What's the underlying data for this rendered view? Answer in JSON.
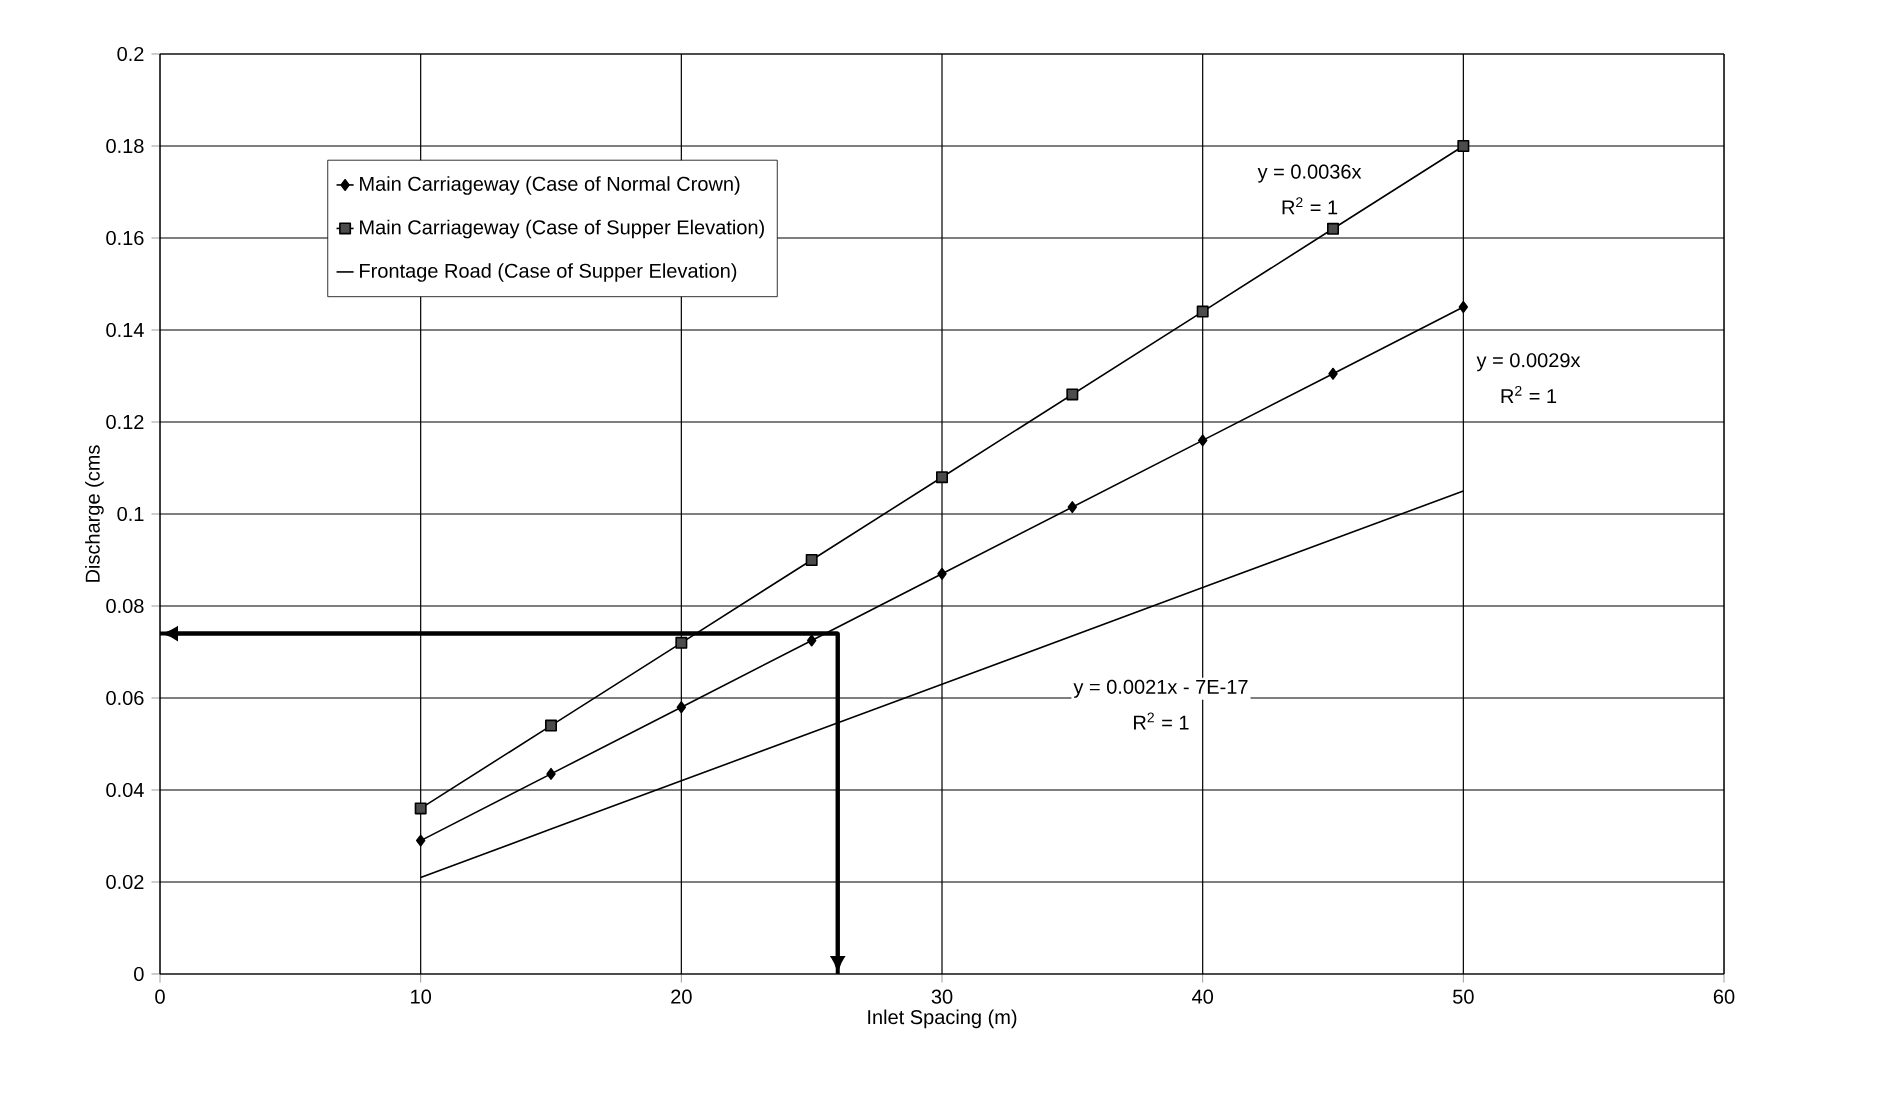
{
  "chart_data": {
    "type": "line",
    "xlabel": "Inlet Spacing (m)",
    "ylabel": "Discharge (cms",
    "xlim": [
      0,
      60
    ],
    "xticks": [
      0,
      10,
      20,
      30,
      40,
      50,
      60
    ],
    "ylim": [
      0,
      0.2
    ],
    "yticks": [
      0,
      0.02,
      0.04,
      0.06,
      0.08,
      0.1,
      0.12,
      0.14,
      0.16,
      0.18,
      0.2
    ],
    "grid": true,
    "legend": "top left",
    "series": [
      {
        "name": "Main Carriageway (Case of Normal Crown)",
        "color": "#000000",
        "marker": "diamond",
        "x": [
          10,
          15,
          20,
          25,
          30,
          35,
          40,
          45,
          50
        ],
        "values": [
          0.029,
          0.0435,
          0.058,
          0.0725,
          0.087,
          0.1015,
          0.116,
          0.1305,
          0.145
        ]
      },
      {
        "name": "Main Carriageway (Case of Supper Elevation)",
        "color": "#000000",
        "marker": "square",
        "x": [
          10,
          15,
          20,
          25,
          30,
          35,
          40,
          45,
          50
        ],
        "values": [
          0.036,
          0.054,
          0.072,
          0.09,
          0.108,
          0.126,
          0.144,
          0.162,
          0.18
        ]
      },
      {
        "name": "Frontage Road (Case of Supper Elevation)",
        "color": "#000000",
        "marker": "none",
        "x": [
          10,
          15,
          20,
          25,
          30,
          35,
          40,
          45,
          50
        ],
        "values": [
          0.021,
          0.0315,
          0.042,
          0.0525,
          0.063,
          0.0735,
          0.084,
          0.0945,
          0.105
        ]
      },
      {
        "color": "#000000",
        "marker": "none",
        "x": [
          0,
          26,
          26
        ],
        "values": [
          0.074,
          0.074,
          0
        ]
      }
    ],
    "annotations": [
      "y = 0.0036x",
      "R$^{2}$ = 1",
      "y = 0.0029x",
      "R$^{2}$ = 1",
      "y = 0.0021x - 7E-17",
      "R$^{2}$ = 1"
    ]
  }
}
